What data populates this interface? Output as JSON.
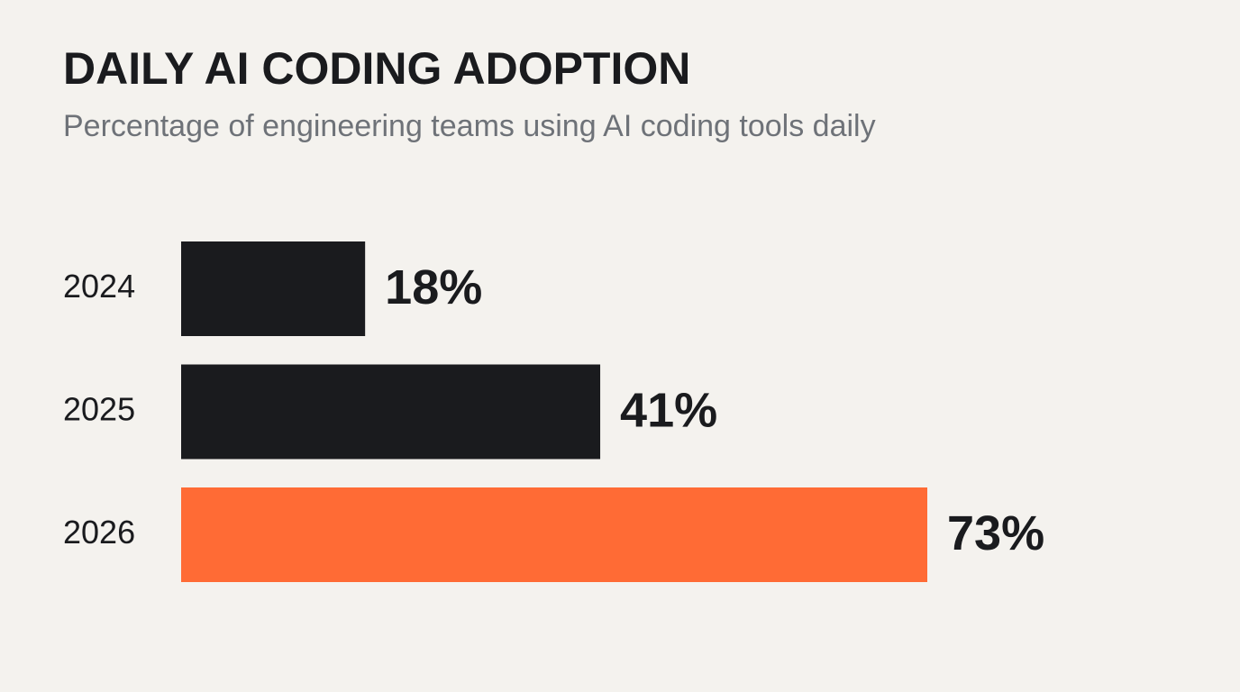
{
  "chart_data": {
    "type": "bar",
    "orientation": "horizontal",
    "title": "DAILY AI CODING ADOPTION",
    "subtitle": "Percentage of engineering teams using AI coding tools daily",
    "categories": [
      "2024",
      "2025",
      "2026"
    ],
    "values": [
      18,
      41,
      73
    ],
    "value_labels": [
      "18%",
      "41%",
      "73%"
    ],
    "colors": [
      "#1a1b1e",
      "#1a1b1e",
      "#ff6b35"
    ]
  }
}
